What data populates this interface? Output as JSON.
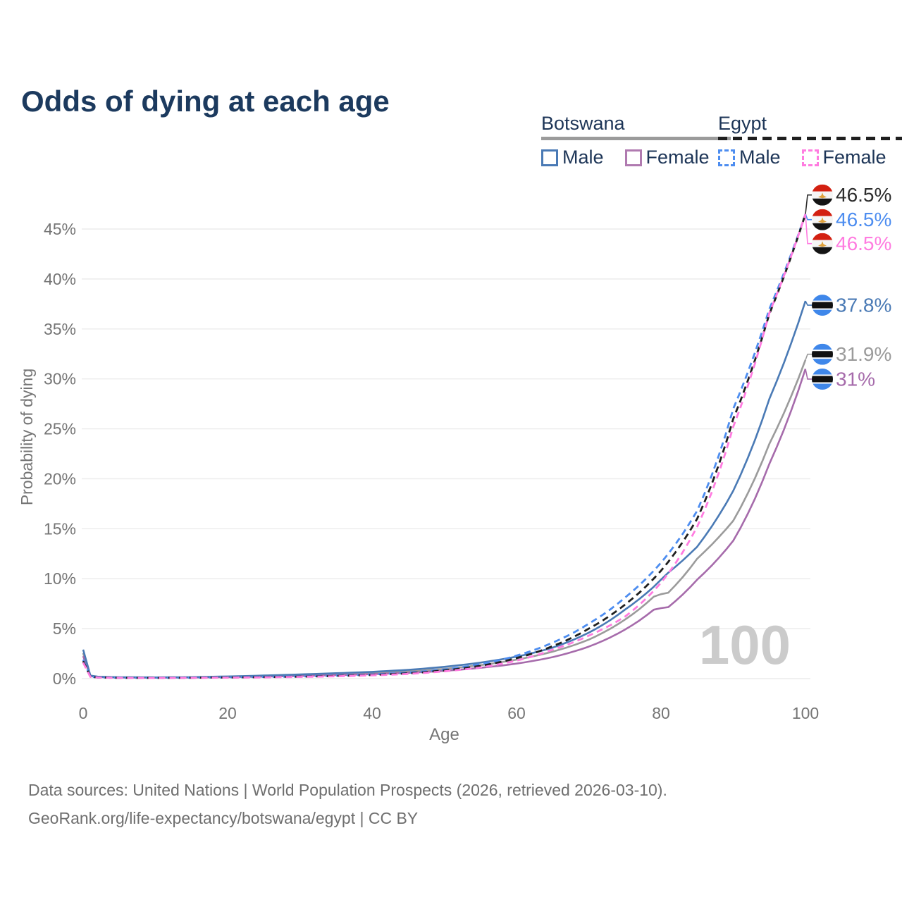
{
  "title": "Odds of dying at each age",
  "legend": {
    "groups": [
      {
        "country": "Botswana",
        "line_style": "solid",
        "underline_color": "#9b9b9b",
        "items": [
          {
            "label": "Male",
            "color": "#4a7ab5"
          },
          {
            "label": "Female",
            "color": "#b07ab0"
          }
        ]
      },
      {
        "country": "Egypt",
        "line_style": "dashed",
        "underline_color": "#1f1f1f",
        "items": [
          {
            "label": "Male",
            "color": "#4d8df0"
          },
          {
            "label": "Female",
            "color": "#ff7ce0"
          }
        ]
      }
    ]
  },
  "footer": {
    "line1": "Data sources: United Nations | World Population Prospects (2026, retrieved 2026-03-10).",
    "line2": "GeoRank.org/life-expectancy/botswana/egypt | CC BY"
  },
  "colors": {
    "title_text": "#1c3a5e",
    "legend_text": "#1d3557",
    "axis_text": "#757575",
    "gridline": "#ebebeb",
    "watermark": "#cbcbcb",
    "botswana_flag_blue": "#3f87ea",
    "egypt_flag_red": "#d32011",
    "egypt_flag_gold": "#e0a23c"
  },
  "chart_data": {
    "type": "line",
    "title": "Odds of dying at each age",
    "xlabel": "Age",
    "ylabel": "Probability of dying",
    "xlim": [
      0,
      100
    ],
    "ylim_percent": [
      0,
      46.5
    ],
    "x_ticks": [
      0,
      20,
      40,
      60,
      80,
      100
    ],
    "y_ticks_percent": [
      0,
      5,
      10,
      15,
      20,
      25,
      30,
      35,
      40,
      45
    ],
    "grid": "horizontal",
    "legend_position": "top-right",
    "watermark": "100",
    "series": [
      {
        "id": "botswana-total",
        "name": "Botswana (both sexes)",
        "country": "Botswana",
        "sex": "Total",
        "line": "solid",
        "color": "#9b9b9b",
        "flag": "botswana",
        "end_label": "31.9%",
        "end_value_percent": 31.9,
        "label_color": "#9b9b9b",
        "points": [
          [
            0,
            2.55
          ],
          [
            1,
            0.27
          ],
          [
            2,
            0.18
          ],
          [
            5,
            0.125
          ],
          [
            10,
            0.105
          ],
          [
            15,
            0.13
          ],
          [
            20,
            0.18
          ],
          [
            25,
            0.25
          ],
          [
            30,
            0.34
          ],
          [
            35,
            0.44
          ],
          [
            40,
            0.56
          ],
          [
            45,
            0.72
          ],
          [
            50,
            0.97
          ],
          [
            55,
            1.35
          ],
          [
            60,
            1.9
          ],
          [
            65,
            2.7
          ],
          [
            70,
            3.9
          ],
          [
            75,
            5.9
          ],
          [
            79,
            8.2
          ],
          [
            80,
            8.45
          ],
          [
            81,
            8.6
          ],
          [
            85,
            12.0
          ],
          [
            90,
            15.8
          ],
          [
            95,
            23.5
          ],
          [
            100,
            31.9
          ]
        ]
      },
      {
        "id": "botswana-female",
        "name": "Botswana Female",
        "country": "Botswana",
        "sex": "Female",
        "line": "solid",
        "color": "#a66bab",
        "flag": "botswana",
        "end_label": "31%",
        "end_value_percent": 31.0,
        "label_color": "#a66bab",
        "points": [
          [
            0,
            2.25
          ],
          [
            1,
            0.24
          ],
          [
            2,
            0.16
          ],
          [
            5,
            0.11
          ],
          [
            10,
            0.095
          ],
          [
            15,
            0.11
          ],
          [
            20,
            0.15
          ],
          [
            25,
            0.2
          ],
          [
            30,
            0.27
          ],
          [
            35,
            0.35
          ],
          [
            40,
            0.45
          ],
          [
            45,
            0.58
          ],
          [
            50,
            0.78
          ],
          [
            55,
            1.08
          ],
          [
            60,
            1.5
          ],
          [
            65,
            2.15
          ],
          [
            70,
            3.2
          ],
          [
            75,
            4.9
          ],
          [
            79,
            6.9
          ],
          [
            80,
            7.05
          ],
          [
            81,
            7.15
          ],
          [
            85,
            9.9
          ],
          [
            90,
            13.8
          ],
          [
            95,
            21.5
          ],
          [
            100,
            31.0
          ]
        ]
      },
      {
        "id": "botswana-male",
        "name": "Botswana Male",
        "country": "Botswana",
        "sex": "Male",
        "line": "solid",
        "color": "#4a7ab5",
        "flag": "botswana",
        "end_label": "37.8%",
        "end_value_percent": 37.8,
        "label_color": "#4a7ab5",
        "points": [
          [
            0,
            2.9
          ],
          [
            1,
            0.3
          ],
          [
            2,
            0.2
          ],
          [
            5,
            0.14
          ],
          [
            10,
            0.12
          ],
          [
            15,
            0.15
          ],
          [
            20,
            0.22
          ],
          [
            25,
            0.31
          ],
          [
            30,
            0.42
          ],
          [
            35,
            0.54
          ],
          [
            40,
            0.68
          ],
          [
            45,
            0.88
          ],
          [
            50,
            1.18
          ],
          [
            55,
            1.6
          ],
          [
            60,
            2.2
          ],
          [
            65,
            3.1
          ],
          [
            70,
            4.6
          ],
          [
            75,
            6.9
          ],
          [
            79,
            9.2
          ],
          [
            80,
            9.9
          ],
          [
            81,
            10.6
          ],
          [
            85,
            13.2
          ],
          [
            90,
            18.8
          ],
          [
            95,
            28.0
          ],
          [
            100,
            37.8
          ]
        ]
      },
      {
        "id": "egypt-male",
        "name": "Egypt Male",
        "country": "Egypt",
        "sex": "Male",
        "line": "dashed",
        "color": "#4d8df0",
        "flag": "egypt",
        "end_label": "46.5%",
        "end_value_percent": 46.5,
        "label_color": "#4d8df0",
        "points": [
          [
            0,
            1.9
          ],
          [
            1,
            0.2
          ],
          [
            2,
            0.13
          ],
          [
            5,
            0.085
          ],
          [
            10,
            0.075
          ],
          [
            15,
            0.095
          ],
          [
            20,
            0.13
          ],
          [
            25,
            0.17
          ],
          [
            30,
            0.22
          ],
          [
            35,
            0.3
          ],
          [
            40,
            0.42
          ],
          [
            45,
            0.6
          ],
          [
            50,
            0.92
          ],
          [
            55,
            1.45
          ],
          [
            60,
            2.3
          ],
          [
            65,
            3.6
          ],
          [
            70,
            5.5
          ],
          [
            75,
            8.1
          ],
          [
            80,
            11.6
          ],
          [
            85,
            16.8
          ],
          [
            90,
            27.0
          ],
          [
            95,
            37.0
          ],
          [
            100,
            46.5
          ]
        ]
      },
      {
        "id": "egypt-total",
        "name": "Egypt (both sexes)",
        "country": "Egypt",
        "sex": "Total",
        "line": "dashed",
        "color": "#1f1f1f",
        "flag": "egypt",
        "end_label": "46.5%",
        "end_value_percent": 46.5,
        "label_color": "#2d2d2d",
        "points": [
          [
            0,
            1.75
          ],
          [
            1,
            0.18
          ],
          [
            2,
            0.12
          ],
          [
            5,
            0.08
          ],
          [
            10,
            0.07
          ],
          [
            15,
            0.088
          ],
          [
            20,
            0.115
          ],
          [
            25,
            0.15
          ],
          [
            30,
            0.195
          ],
          [
            35,
            0.265
          ],
          [
            40,
            0.37
          ],
          [
            45,
            0.53
          ],
          [
            50,
            0.82
          ],
          [
            55,
            1.28
          ],
          [
            60,
            2.05
          ],
          [
            65,
            3.25
          ],
          [
            70,
            5.0
          ],
          [
            75,
            7.4
          ],
          [
            80,
            10.8
          ],
          [
            85,
            16.0
          ],
          [
            90,
            26.0
          ],
          [
            95,
            36.5
          ],
          [
            100,
            46.5
          ]
        ]
      },
      {
        "id": "egypt-female",
        "name": "Egypt Female",
        "country": "Egypt",
        "sex": "Female",
        "line": "dashed",
        "color": "#ff7ce0",
        "flag": "egypt",
        "end_label": "46.5%",
        "end_value_percent": 46.5,
        "label_color": "#ff7ce0",
        "points": [
          [
            0,
            1.6
          ],
          [
            1,
            0.17
          ],
          [
            2,
            0.11
          ],
          [
            5,
            0.075
          ],
          [
            10,
            0.065
          ],
          [
            15,
            0.08
          ],
          [
            20,
            0.1
          ],
          [
            25,
            0.13
          ],
          [
            30,
            0.17
          ],
          [
            35,
            0.235
          ],
          [
            40,
            0.33
          ],
          [
            45,
            0.47
          ],
          [
            50,
            0.73
          ],
          [
            55,
            1.12
          ],
          [
            60,
            1.8
          ],
          [
            65,
            2.9
          ],
          [
            70,
            4.3
          ],
          [
            75,
            6.2
          ],
          [
            80,
            9.6
          ],
          [
            85,
            15.2
          ],
          [
            90,
            25.2
          ],
          [
            95,
            36.6
          ],
          [
            100,
            46.5
          ]
        ]
      }
    ]
  }
}
